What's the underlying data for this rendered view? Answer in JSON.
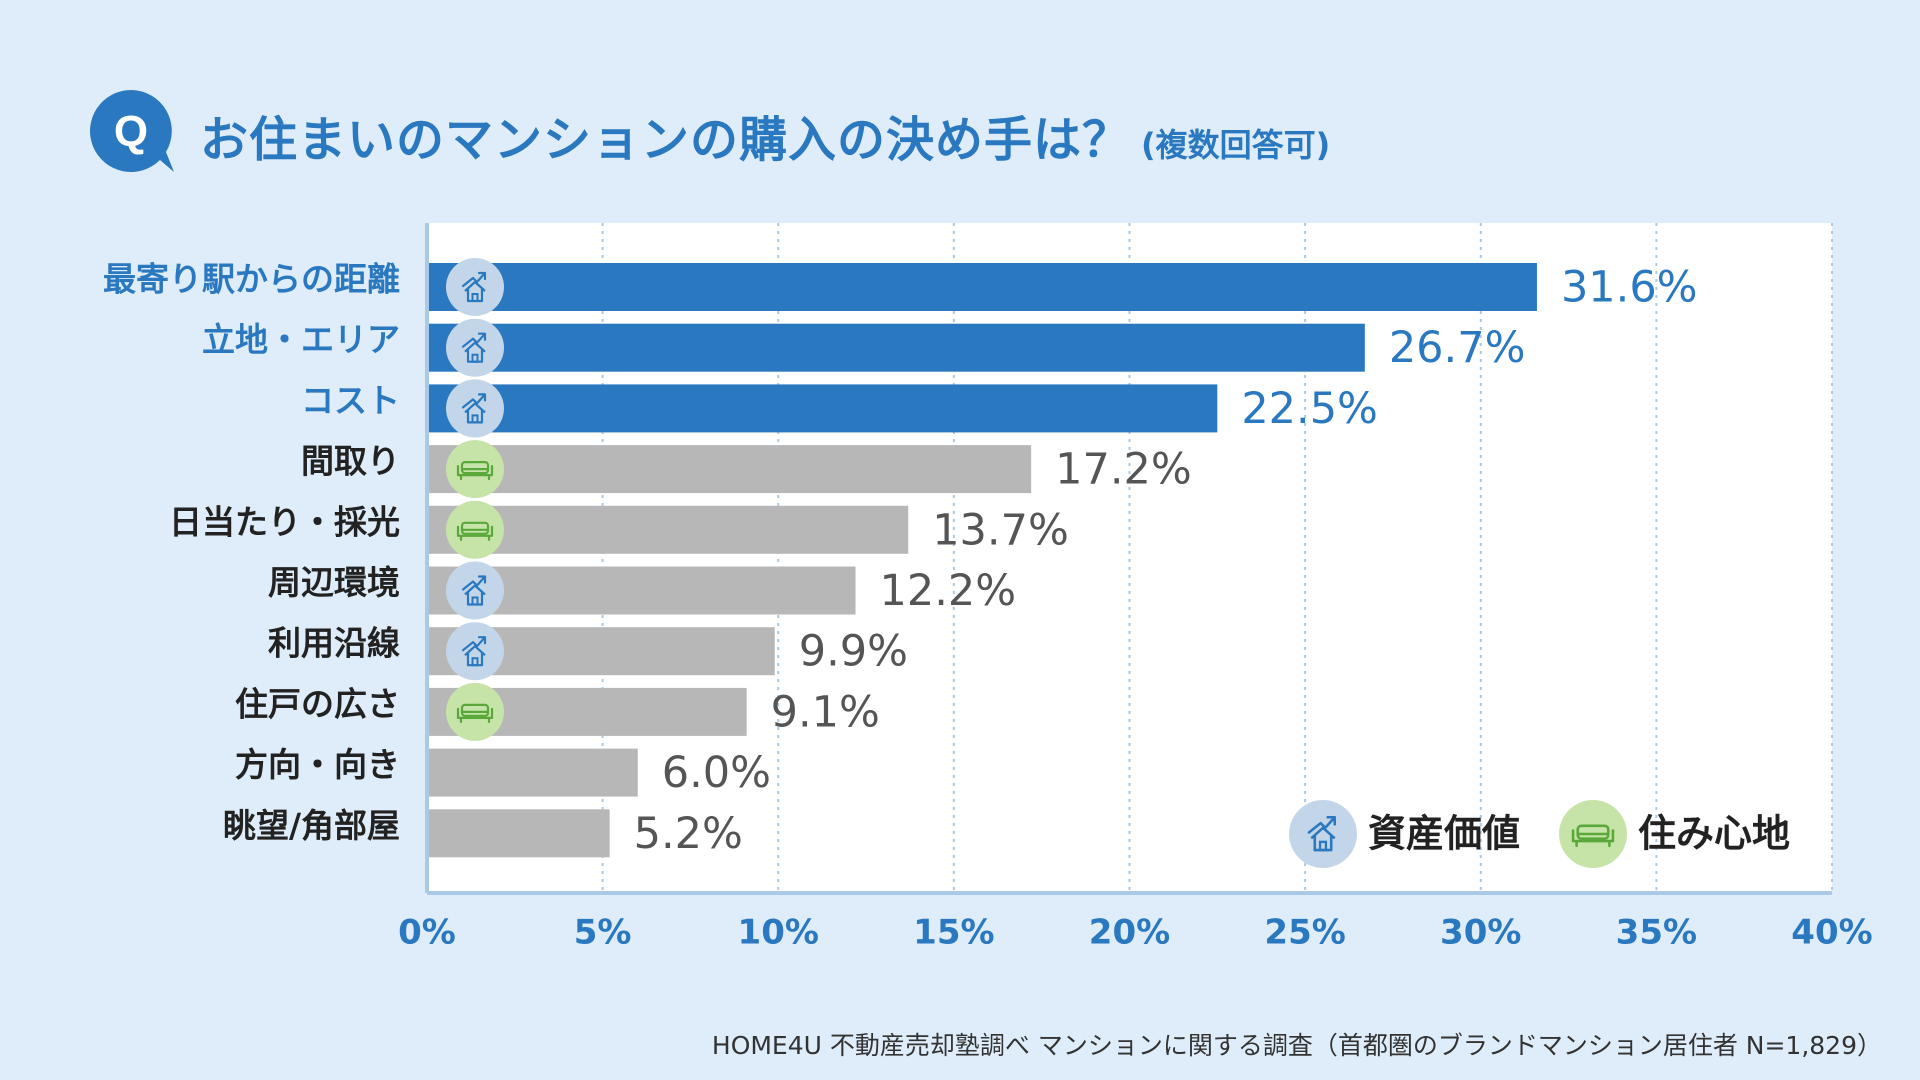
{
  "title": "お住まいのマンションの購入の決め手は？",
  "title_note": "(複数回答可)",
  "badge_letter": "Q",
  "source": "HOME4U 不動産売却塾調べ マンションに関する調査（首都圏のブランドマンション居住者 N=1,829）",
  "colors": {
    "background": "#deedf9",
    "accent": "#2a78c0",
    "highlight_bar": "#2a78c0",
    "other_bar": "#b7b7b7",
    "asset_icon_bg": "#c3d6e9",
    "comfort_icon_bg": "#c6e4a8"
  },
  "legend": [
    {
      "key": "asset",
      "label": "資産価値",
      "icon": "house-chart-icon"
    },
    {
      "key": "comfort",
      "label": "住み心地",
      "icon": "sofa-icon"
    }
  ],
  "chart_data": {
    "type": "bar",
    "orientation": "horizontal",
    "categories": [
      "最寄り駅からの距離",
      "立地・エリア",
      "コスト",
      "間取り",
      "日当たり・採光",
      "周辺環境",
      "利用沿線",
      "住戸の広さ",
      "方向・向き",
      "眺望/角部屋"
    ],
    "values": [
      31.6,
      26.7,
      22.5,
      17.2,
      13.7,
      12.2,
      9.9,
      9.1,
      6.0,
      5.2
    ],
    "value_labels": [
      "31.6%",
      "26.7%",
      "22.5%",
      "17.2%",
      "13.7%",
      "12.2%",
      "9.9%",
      "9.1%",
      "6.0%",
      "5.2%"
    ],
    "highlighted": [
      true,
      true,
      true,
      false,
      false,
      false,
      false,
      false,
      false,
      false
    ],
    "icon_type": [
      "asset",
      "asset",
      "asset",
      "comfort",
      "comfort",
      "asset",
      "asset",
      "comfort",
      "",
      ""
    ],
    "xlim": [
      0,
      40
    ],
    "xticks": [
      0,
      5,
      10,
      15,
      20,
      25,
      30,
      35,
      40
    ],
    "xtick_labels": [
      "0%",
      "5%",
      "10%",
      "15%",
      "20%",
      "25%",
      "30%",
      "35%",
      "40%"
    ],
    "grid": true,
    "legend_position": "bottom-right"
  }
}
